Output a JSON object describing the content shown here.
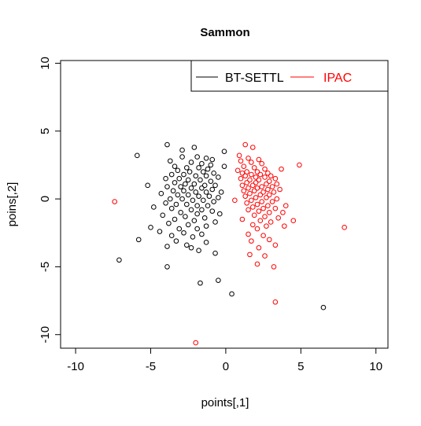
{
  "chart_data": {
    "type": "scatter",
    "title": "Sammon",
    "xlabel": "points[,1]",
    "ylabel": "poins[,2]",
    "xlim": [
      -11,
      10.8
    ],
    "ylim": [
      -11,
      10.2
    ],
    "xticks": [
      -10,
      -5,
      0,
      5,
      10
    ],
    "yticks": [
      -10,
      -5,
      0,
      5,
      10
    ],
    "xtick_labels": [
      "-10",
      "-5",
      "0",
      "5",
      "10"
    ],
    "ytick_labels": [
      "-10",
      "-5",
      "0",
      "5",
      "10"
    ],
    "grid": false,
    "legend_position": "top-right",
    "series": [
      {
        "name": "BT-SETTL",
        "color": "#000000",
        "points": [
          [
            -3.9,
            4.0
          ],
          [
            -2.1,
            3.8
          ],
          [
            -2.9,
            3.6
          ],
          [
            -0.1,
            3.5
          ],
          [
            -5.9,
            3.2
          ],
          [
            -1.9,
            3.1
          ],
          [
            -2.9,
            3.1
          ],
          [
            -1.3,
            3.0
          ],
          [
            -0.9,
            2.9
          ],
          [
            -3.7,
            2.8
          ],
          [
            -2.3,
            2.7
          ],
          [
            -1.6,
            2.6
          ],
          [
            -1.0,
            2.5
          ],
          [
            -0.1,
            2.4
          ],
          [
            -3.4,
            2.4
          ],
          [
            -2.6,
            2.3
          ],
          [
            -1.8,
            2.3
          ],
          [
            -1.2,
            2.2
          ],
          [
            -3.2,
            2.1
          ],
          [
            -2.4,
            2.0
          ],
          [
            -1.5,
            2.0
          ],
          [
            -0.8,
            1.9
          ],
          [
            -3.6,
            1.8
          ],
          [
            -2.8,
            1.8
          ],
          [
            -2.0,
            1.7
          ],
          [
            -1.3,
            1.7
          ],
          [
            -0.5,
            1.6
          ],
          [
            -4.0,
            1.5
          ],
          [
            -3.1,
            1.5
          ],
          [
            -2.5,
            1.4
          ],
          [
            -1.7,
            1.4
          ],
          [
            -1.0,
            1.3
          ],
          [
            -3.4,
            1.2
          ],
          [
            -2.7,
            1.1
          ],
          [
            -2.1,
            1.1
          ],
          [
            -1.4,
            1.0
          ],
          [
            -0.7,
            1.0
          ],
          [
            -5.2,
            1.0
          ],
          [
            -3.9,
            0.9
          ],
          [
            -3.0,
            0.9
          ],
          [
            -2.3,
            0.8
          ],
          [
            -1.6,
            0.8
          ],
          [
            -0.9,
            0.7
          ],
          [
            -3.5,
            0.6
          ],
          [
            -2.8,
            0.6
          ],
          [
            -2.0,
            0.5
          ],
          [
            -1.3,
            0.5
          ],
          [
            -0.3,
            0.5
          ],
          [
            -4.3,
            0.4
          ],
          [
            -3.2,
            0.3
          ],
          [
            -2.5,
            0.3
          ],
          [
            -1.8,
            0.2
          ],
          [
            -1.1,
            0.2
          ],
          [
            -0.5,
            0.1
          ],
          [
            -3.7,
            0.0
          ],
          [
            -2.9,
            0.0
          ],
          [
            -2.2,
            -0.1
          ],
          [
            -1.5,
            -0.1
          ],
          [
            -0.8,
            -0.2
          ],
          [
            -4.0,
            -0.3
          ],
          [
            -3.3,
            -0.4
          ],
          [
            -2.6,
            -0.4
          ],
          [
            -1.9,
            -0.5
          ],
          [
            -1.2,
            -0.5
          ],
          [
            -4.8,
            -0.6
          ],
          [
            -3.6,
            -0.7
          ],
          [
            -2.3,
            -0.8
          ],
          [
            -1.6,
            -0.8
          ],
          [
            -0.9,
            -0.9
          ],
          [
            -3.0,
            -1.0
          ],
          [
            -1.9,
            -1.1
          ],
          [
            -0.4,
            -1.1
          ],
          [
            -4.2,
            -1.2
          ],
          [
            -2.7,
            -1.3
          ],
          [
            -1.4,
            -1.4
          ],
          [
            -3.4,
            -1.5
          ],
          [
            -2.1,
            -1.6
          ],
          [
            -0.7,
            -1.7
          ],
          [
            -3.8,
            -1.8
          ],
          [
            -2.5,
            -1.9
          ],
          [
            -1.3,
            -2.0
          ],
          [
            -5.0,
            -2.1
          ],
          [
            -3.1,
            -2.2
          ],
          [
            -1.9,
            -2.2
          ],
          [
            -4.4,
            -2.4
          ],
          [
            -2.8,
            -2.5
          ],
          [
            -1.6,
            -2.6
          ],
          [
            -3.6,
            -2.7
          ],
          [
            -2.2,
            -2.8
          ],
          [
            -5.8,
            -3.0
          ],
          [
            -3.3,
            -3.1
          ],
          [
            -1.3,
            -3.2
          ],
          [
            -2.6,
            -3.4
          ],
          [
            -3.9,
            -3.5
          ],
          [
            -2.3,
            -3.6
          ],
          [
            -1.8,
            -3.8
          ],
          [
            -0.7,
            -4.0
          ],
          [
            -7.1,
            -4.5
          ],
          [
            -3.9,
            -5.0
          ],
          [
            -0.5,
            -6.0
          ],
          [
            -1.7,
            -6.2
          ],
          [
            0.4,
            -7.0
          ],
          [
            6.5,
            -8.0
          ]
        ]
      },
      {
        "name": "IPAC",
        "color": "#ff0000",
        "points": [
          [
            1.3,
            4.0
          ],
          [
            1.8,
            3.8
          ],
          [
            0.9,
            3.2
          ],
          [
            1.5,
            3.0
          ],
          [
            2.2,
            2.9
          ],
          [
            1.0,
            2.8
          ],
          [
            1.7,
            2.7
          ],
          [
            2.4,
            2.6
          ],
          [
            4.9,
            2.5
          ],
          [
            1.2,
            2.4
          ],
          [
            1.9,
            2.3
          ],
          [
            2.6,
            2.2
          ],
          [
            3.7,
            2.2
          ],
          [
            0.8,
            2.1
          ],
          [
            1.4,
            2.0
          ],
          [
            2.1,
            2.0
          ],
          [
            2.8,
            1.9
          ],
          [
            1.1,
            1.9
          ],
          [
            1.7,
            1.8
          ],
          [
            2.3,
            1.8
          ],
          [
            3.0,
            1.7
          ],
          [
            1.3,
            1.7
          ],
          [
            2.0,
            1.6
          ],
          [
            2.6,
            1.6
          ],
          [
            3.3,
            1.5
          ],
          [
            1.0,
            1.5
          ],
          [
            1.6,
            1.4
          ],
          [
            2.2,
            1.4
          ],
          [
            2.9,
            1.3
          ],
          [
            1.4,
            1.2
          ],
          [
            2.0,
            1.2
          ],
          [
            2.7,
            1.1
          ],
          [
            3.4,
            1.1
          ],
          [
            1.1,
            1.0
          ],
          [
            1.8,
            1.0
          ],
          [
            2.4,
            0.9
          ],
          [
            3.1,
            0.9
          ],
          [
            1.5,
            0.8
          ],
          [
            2.1,
            0.8
          ],
          [
            2.8,
            0.7
          ],
          [
            3.6,
            0.7
          ],
          [
            1.2,
            0.6
          ],
          [
            1.9,
            0.6
          ],
          [
            2.5,
            0.5
          ],
          [
            3.2,
            0.5
          ],
          [
            1.6,
            0.4
          ],
          [
            2.3,
            0.3
          ],
          [
            2.9,
            0.3
          ],
          [
            1.3,
            0.2
          ],
          [
            2.0,
            0.1
          ],
          [
            2.7,
            0.1
          ],
          [
            3.4,
            0.0
          ],
          [
            0.6,
            -0.1
          ],
          [
            1.7,
            -0.1
          ],
          [
            2.4,
            -0.2
          ],
          [
            3.1,
            -0.2
          ],
          [
            1.4,
            -0.3
          ],
          [
            2.1,
            -0.4
          ],
          [
            2.8,
            -0.5
          ],
          [
            4.0,
            -0.5
          ],
          [
            1.8,
            -0.6
          ],
          [
            2.5,
            -0.7
          ],
          [
            3.3,
            -0.7
          ],
          [
            1.5,
            -0.8
          ],
          [
            2.2,
            -0.9
          ],
          [
            2.9,
            -1.0
          ],
          [
            3.8,
            -1.0
          ],
          [
            1.9,
            -1.2
          ],
          [
            2.6,
            -1.3
          ],
          [
            3.5,
            -1.4
          ],
          [
            1.1,
            -1.5
          ],
          [
            2.3,
            -1.6
          ],
          [
            3.0,
            -1.7
          ],
          [
            4.5,
            -1.6
          ],
          [
            1.8,
            -1.9
          ],
          [
            2.7,
            -2.0
          ],
          [
            3.9,
            -2.0
          ],
          [
            2.1,
            -2.2
          ],
          [
            1.5,
            -2.6
          ],
          [
            2.5,
            -2.7
          ],
          [
            2.9,
            -3.0
          ],
          [
            1.7,
            -3.1
          ],
          [
            3.3,
            -3.4
          ],
          [
            2.2,
            -3.6
          ],
          [
            1.6,
            -4.1
          ],
          [
            2.6,
            -4.2
          ],
          [
            3.2,
            -5.0
          ],
          [
            2.1,
            -4.8
          ],
          [
            3.3,
            -7.6
          ],
          [
            7.9,
            -2.1
          ],
          [
            -7.4,
            -0.2
          ],
          [
            -2.0,
            -10.6
          ]
        ]
      }
    ]
  }
}
